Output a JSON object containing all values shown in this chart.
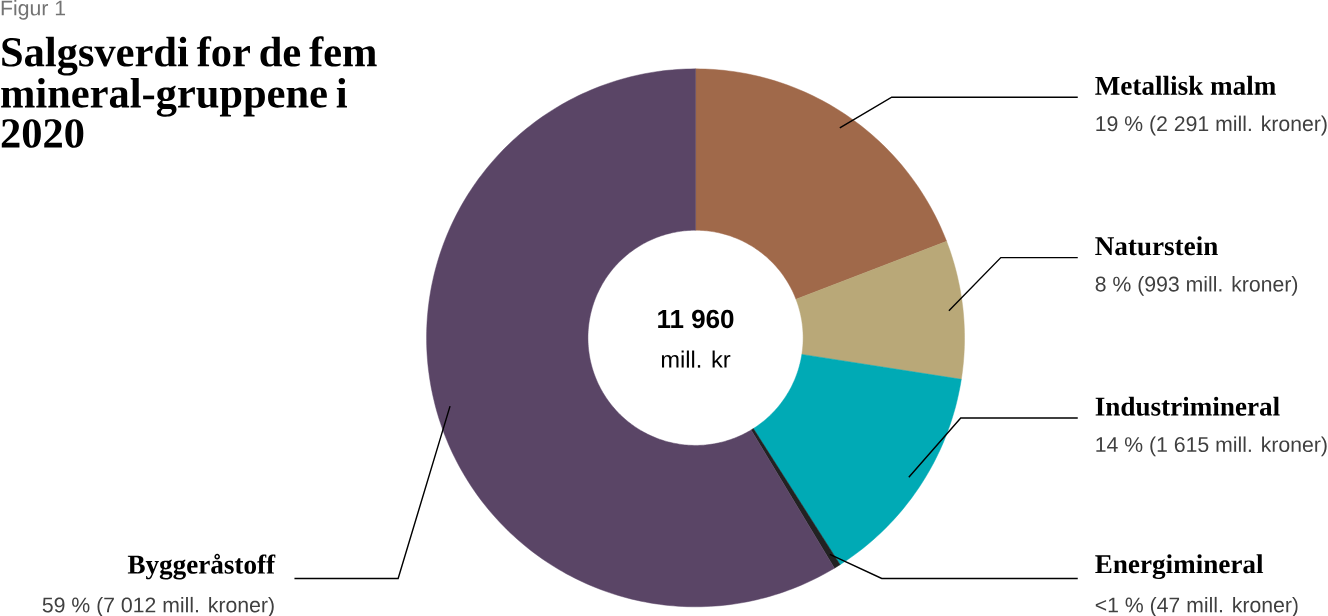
{
  "chart_data": {
    "type": "donut",
    "title": "Salgsverdi for de fem mineral-gruppene i 2020",
    "categories": [
      "Metallisk malm",
      "Naturstein",
      "Industrimineral",
      "Energimineral",
      "Byggeråstoff"
    ],
    "values": [
      2291,
      993,
      1615,
      47,
      7012
    ],
    "colors": [
      "#a0694a",
      "#b9a878",
      "#00aab5",
      "#222222",
      "#5a4566"
    ],
    "value_labels": [
      "19 % (2 291 mill. kroner)",
      "8 % (993 mill. kroner)",
      "14 % (1 615 mill. kroner)",
      "<1 % (47 mill. kroner)",
      "59 % (7 012 mill. kroner)"
    ],
    "annotations": [
      "Figur 1",
      "11 960",
      "mill. kr"
    ]
  }
}
